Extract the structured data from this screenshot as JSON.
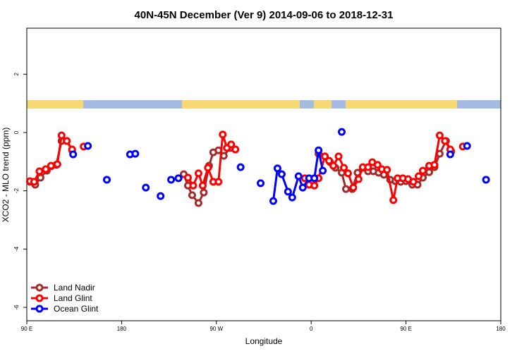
{
  "chart_data": {
    "type": "line",
    "title": "40N-45N December (Ver 9)   2014-09-06 to 2018-12-31",
    "x_label": "Longitude",
    "y_label": "XCO2 - MLO trend (ppm)",
    "xlim": [
      90,
      540
    ],
    "xticks": [
      {
        "value": 90,
        "label": "90 E"
      },
      {
        "value": 180,
        "label": "180"
      },
      {
        "value": 270,
        "label": "90 W"
      },
      {
        "value": 360,
        "label": "0"
      },
      {
        "value": 450,
        "label": "90 E"
      },
      {
        "value": 540,
        "label": "180"
      }
    ],
    "ylim": [
      -6.46,
      3.58
    ],
    "yticks": [
      -6,
      -4,
      -2,
      0,
      2
    ],
    "legend": "bottom-left",
    "series": [
      {
        "name": "Land Nadir",
        "color": "#a52a2a",
        "x": [
          93,
          98,
          103,
          109,
          113,
          118,
          123,
          128,
          133,
          null,
          239,
          243,
          247,
          253,
          258,
          263,
          267,
          272,
          277,
          283,
          288,
          null,
          367,
          373,
          378,
          383,
          389,
          393,
          399,
          404,
          409,
          414,
          419,
          424,
          429,
          435,
          440,
          445,
          450,
          456,
          461,
          466,
          472,
          477,
          482,
          488,
          493
        ],
        "values": [
          -1.69,
          -1.79,
          -1.55,
          -1.31,
          -1.16,
          -1.11,
          -0.29,
          -0.29,
          -0.61,
          null,
          -1.43,
          -1.82,
          -2.15,
          -2.42,
          -2.06,
          -1.14,
          -0.68,
          -0.61,
          -0.8,
          -0.53,
          -0.58,
          null,
          -0.73,
          -0.82,
          -1.02,
          -1.21,
          -1.38,
          -1.94,
          -1.94,
          -1.38,
          -1.21,
          -1.33,
          -1.33,
          -1.38,
          -1.45,
          -1.62,
          -1.67,
          -1.69,
          -1.67,
          -1.79,
          -1.79,
          -1.55,
          -1.36,
          -1.19,
          -0.73,
          -0.29,
          -0.65
        ]
      },
      {
        "name": "Land Glint",
        "color": "#ff0000",
        "x": [
          93,
          97,
          102,
          108,
          113,
          119,
          123,
          128,
          133,
          null,
          144,
          null,
          243,
          248,
          253,
          257,
          262,
          267,
          272,
          276,
          280,
          284,
          288,
          null,
          354,
          358,
          363,
          367,
          373,
          377,
          381,
          386,
          391,
          395,
          400,
          405,
          409,
          414,
          418,
          423,
          427,
          432,
          438,
          442,
          447,
          452,
          457,
          462,
          466,
          472,
          477,
          482,
          487,
          492,
          null,
          504
        ],
        "values": [
          -1.67,
          -1.69,
          -1.33,
          -1.26,
          -1.14,
          -1.09,
          -0.1,
          -0.29,
          -0.58,
          null,
          -0.48,
          null,
          -1.55,
          -1.82,
          -1.4,
          -1.82,
          -1.21,
          -1.69,
          -1.69,
          -0.07,
          -0.53,
          -0.41,
          -0.58,
          null,
          -1.57,
          -1.79,
          -1.82,
          -1.57,
          -0.82,
          -0.97,
          -1.14,
          -0.82,
          -1.21,
          -1.4,
          -1.89,
          -1.6,
          -1.19,
          -1.19,
          -1.02,
          -1.11,
          -1.26,
          -1.28,
          -2.32,
          -1.57,
          -1.57,
          -1.6,
          -1.69,
          -1.5,
          -1.31,
          -1.14,
          -1.11,
          -0.1,
          -0.29,
          -0.58,
          null,
          -0.48
        ]
      },
      {
        "name": "Ocean Glint",
        "color": "#0000ff",
        "x": [
          134,
          null,
          148,
          null,
          166,
          null,
          188,
          null,
          193,
          null,
          203,
          null,
          217,
          null,
          227,
          null,
          234,
          null,
          293,
          null,
          312,
          null,
          324,
          328,
          332,
          338,
          342,
          348,
          352,
          358,
          363,
          367,
          371,
          null,
          389,
          null,
          492,
          null,
          508,
          null,
          526
        ],
        "values": [
          -0.75,
          null,
          -0.46,
          null,
          -1.62,
          null,
          -0.75,
          null,
          -0.73,
          null,
          -1.89,
          null,
          -2.18,
          null,
          -1.62,
          null,
          -1.57,
          null,
          -1.19,
          null,
          -1.74,
          null,
          -2.35,
          -1.23,
          -1.43,
          -2.03,
          -2.23,
          -1.5,
          -1.89,
          -1.57,
          -1.57,
          -0.61,
          -1.31,
          null,
          0.02,
          null,
          -0.75,
          null,
          -0.46,
          null,
          -1.62
        ]
      }
    ]
  }
}
